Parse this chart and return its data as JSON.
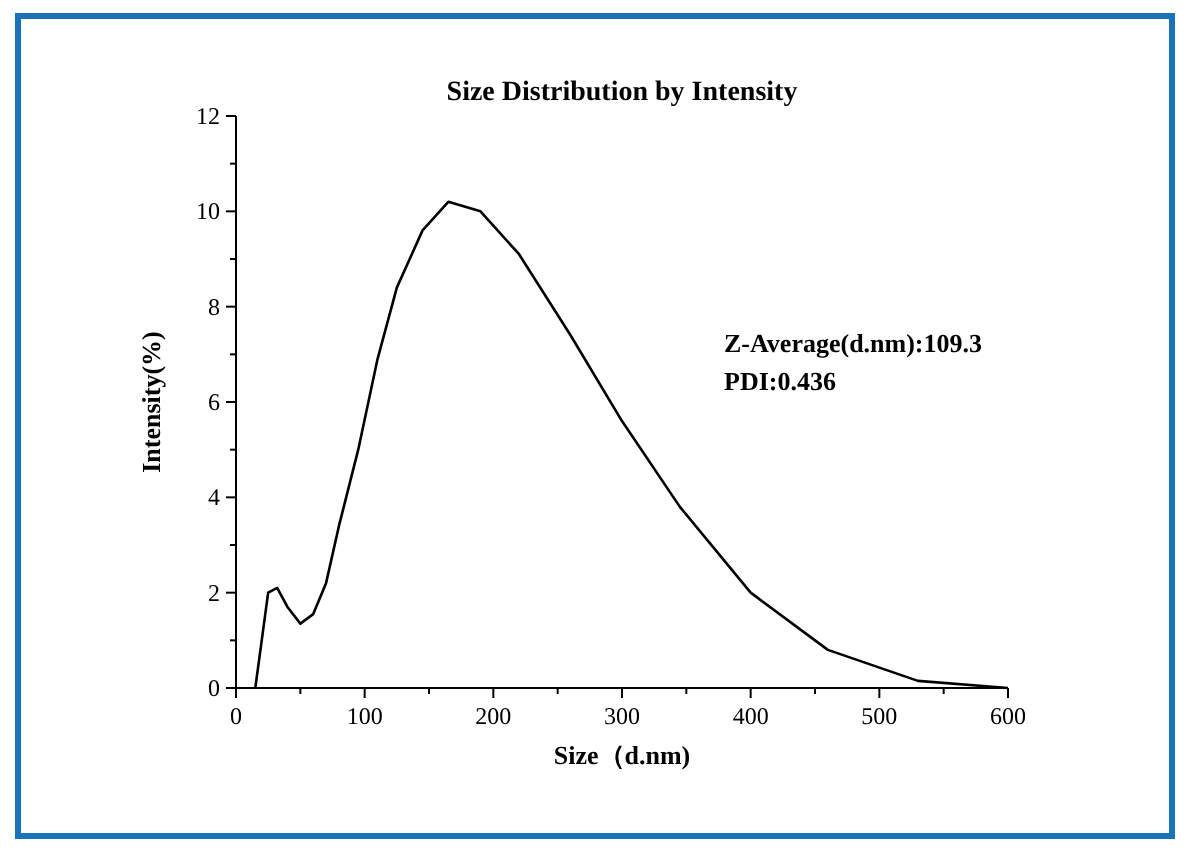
{
  "chart_data": {
    "type": "line",
    "title": "Size Distribution by Intensity",
    "xlabel": "Size（d.nm)",
    "ylabel": "Intensity(%)",
    "x": [
      15,
      20,
      25,
      32,
      40,
      50,
      60,
      70,
      80,
      95,
      110,
      125,
      145,
      165,
      190,
      220,
      260,
      300,
      345,
      400,
      460,
      530,
      600
    ],
    "series": [
      {
        "color": "#000000",
        "values": [
          0,
          1.0,
          2.0,
          2.1,
          1.7,
          1.35,
          1.55,
          2.2,
          3.4,
          5.0,
          6.9,
          8.4,
          9.6,
          10.2,
          10.0,
          9.1,
          7.4,
          5.6,
          3.8,
          2.0,
          0.8,
          0.15,
          0.0
        ]
      }
    ],
    "xlim": [
      0,
      600
    ],
    "xticks": [
      0,
      100,
      200,
      300,
      400,
      500,
      600
    ],
    "ylim": [
      0,
      12
    ],
    "yticks": [
      0,
      2,
      4,
      6,
      8,
      10,
      12
    ],
    "annotations": [
      "Z-Average(d.nm):109.3",
      "PDI:0.436"
    ],
    "marker": "none",
    "line_style": "solid",
    "grid": false
  }
}
